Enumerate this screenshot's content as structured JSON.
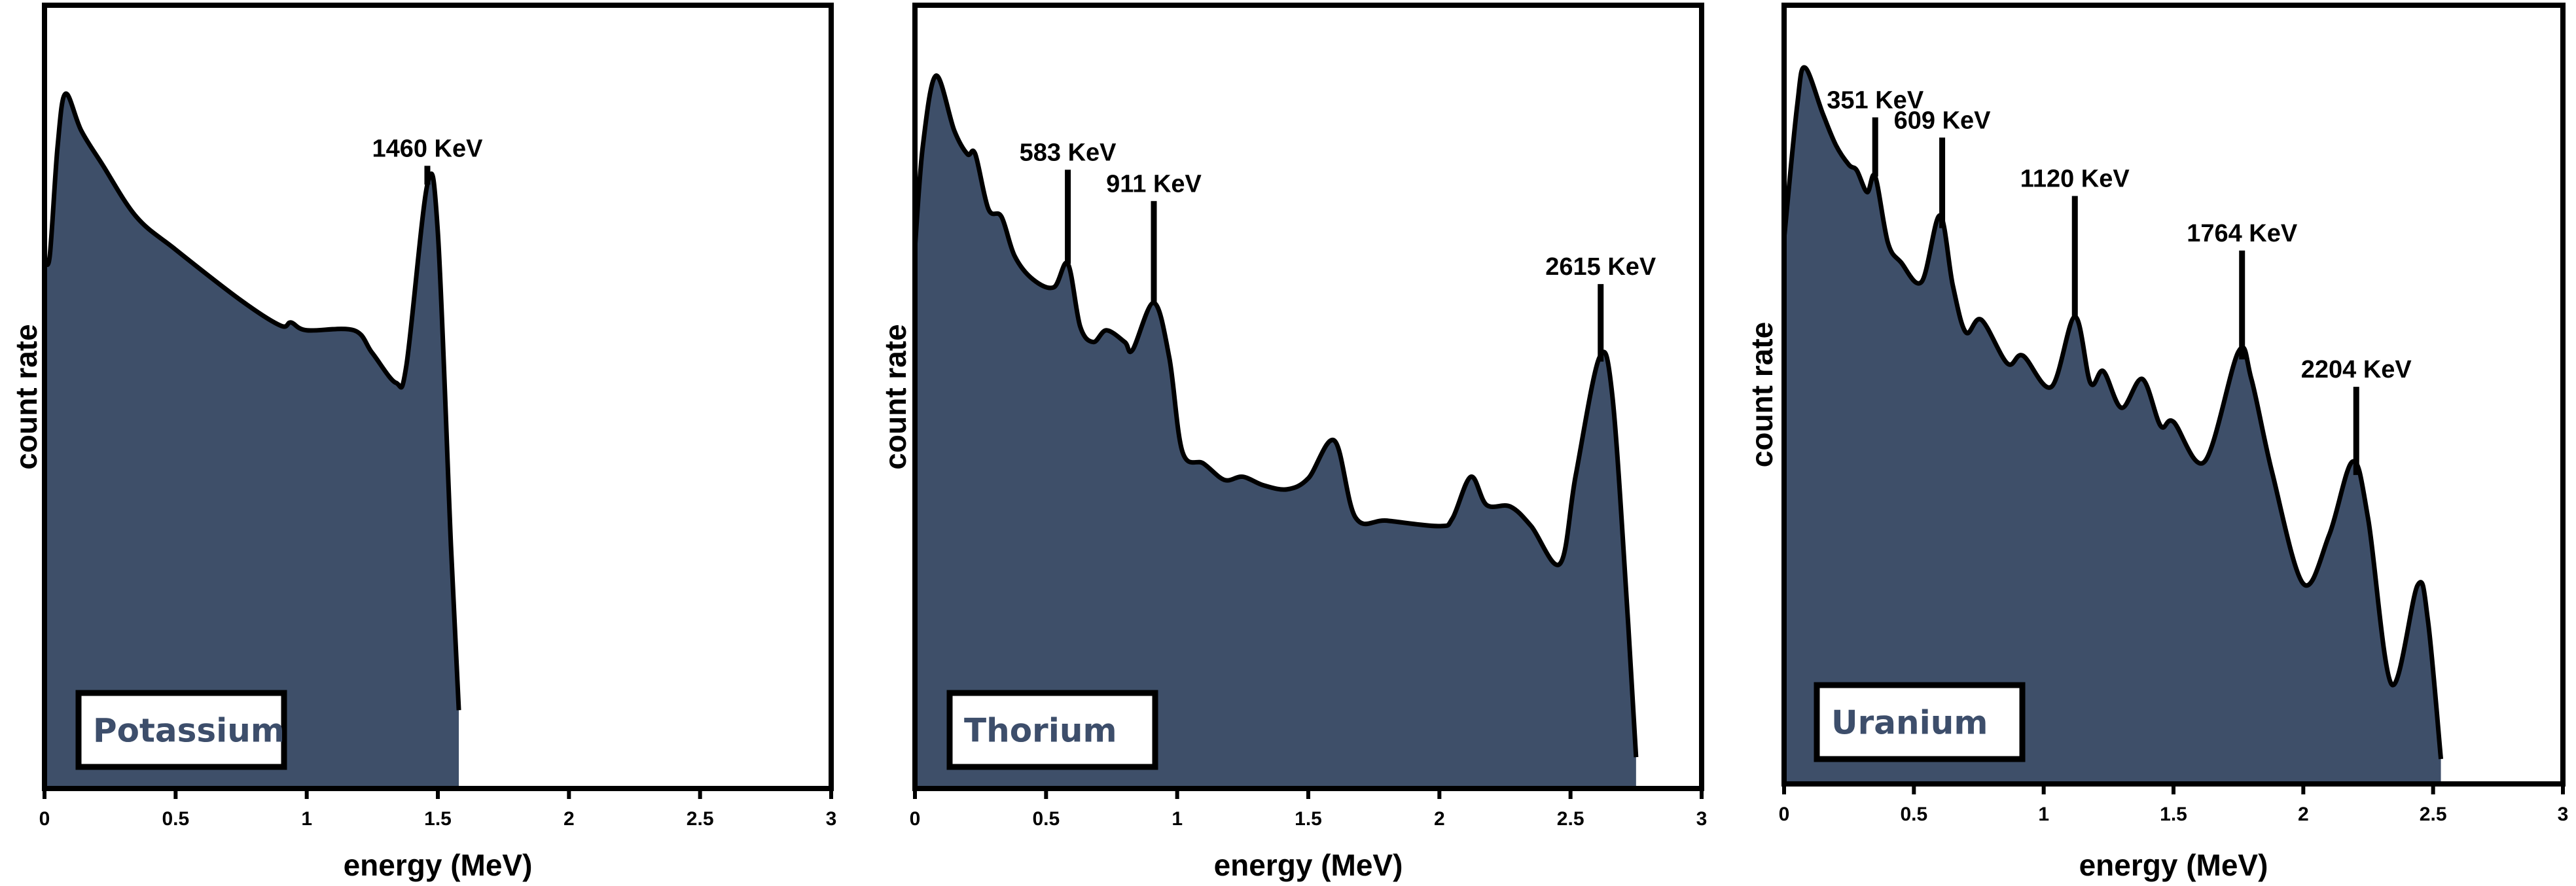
{
  "colors": {
    "fill": "#3e4f69",
    "label_text": "#3d4e6b",
    "line": "#000000"
  },
  "chart_data": [
    {
      "type": "area",
      "element_label": "Potassium",
      "xlabel": "energy (MeV)",
      "ylabel": "count rate",
      "xlim": [
        0,
        3
      ],
      "ylim": [
        0,
        100
      ],
      "y_ticks_shown": false,
      "grid": false,
      "xticks": [
        "0",
        "0.5",
        "1",
        "1.5",
        "2",
        "2.5",
        "3"
      ],
      "x": [
        0,
        0.02,
        0.05,
        0.08,
        0.14,
        0.22,
        0.35,
        0.5,
        0.75,
        0.9,
        0.94,
        1.0,
        1.18,
        1.25,
        1.34,
        1.38,
        1.46,
        1.5,
        1.55,
        1.58
      ],
      "y": [
        67.7,
        68,
        82,
        88.7,
        84,
        79.7,
        73,
        68.8,
        62.3,
        59.1,
        59.5,
        58.5,
        58.5,
        55.6,
        51.8,
        54,
        77.1,
        71,
        31,
        10
      ],
      "peaks": [
        {
          "label": "1460 KeV",
          "energy": 1.46,
          "marker_top": 79.5
        }
      ]
    },
    {
      "type": "area",
      "element_label": "Thorium",
      "xlabel": "energy (MeV)",
      "ylabel": "count rate",
      "xlim": [
        0,
        3
      ],
      "ylim": [
        0,
        100
      ],
      "y_ticks_shown": false,
      "grid": false,
      "xticks": [
        "0",
        "0.5",
        "1",
        "1.5",
        "2",
        "2.5",
        "3"
      ],
      "x": [
        0,
        0.03,
        0.08,
        0.15,
        0.2,
        0.23,
        0.28,
        0.33,
        0.38,
        0.45,
        0.53,
        0.583,
        0.63,
        0.68,
        0.73,
        0.8,
        0.83,
        0.911,
        0.97,
        1.02,
        1.1,
        1.18,
        1.25,
        1.33,
        1.42,
        1.5,
        1.6,
        1.68,
        1.8,
        2.0,
        2.05,
        2.12,
        2.18,
        2.27,
        2.35,
        2.46,
        2.52,
        2.61,
        2.66,
        2.72,
        2.75
      ],
      "y": [
        69,
        82,
        91,
        84,
        81,
        81,
        74,
        73,
        68,
        65,
        64,
        67,
        59,
        57,
        58.5,
        57,
        56,
        62,
        55,
        43,
        41.5,
        39.4,
        39.8,
        38.7,
        38.2,
        39.6,
        44.4,
        34.6,
        34.2,
        33.5,
        34.5,
        39.8,
        36.2,
        36,
        33.5,
        28.7,
        40,
        55,
        50,
        21,
        4
      ],
      "peaks": [
        {
          "label": "583 KeV",
          "energy": 0.583,
          "marker_top": 79
        },
        {
          "label": "911 KeV",
          "energy": 0.911,
          "marker_top": 75
        },
        {
          "label": "2615 KeV",
          "energy": 2.615,
          "marker_top": 64.4
        }
      ]
    },
    {
      "type": "area",
      "element_label": "Uranium",
      "xlabel": "energy (MeV)",
      "ylabel": "count rate",
      "xlim": [
        0,
        3
      ],
      "ylim": [
        0,
        100
      ],
      "y_ticks_shown": false,
      "grid": false,
      "xticks": [
        "0",
        "0.5",
        "1",
        "1.5",
        "2",
        "2.5",
        "3"
      ],
      "x": [
        0,
        0.05,
        0.08,
        0.15,
        0.2,
        0.25,
        0.28,
        0.32,
        0.351,
        0.4,
        0.45,
        0.53,
        0.6,
        0.65,
        0.7,
        0.76,
        0.86,
        0.92,
        1.03,
        1.12,
        1.18,
        1.23,
        1.3,
        1.38,
        1.45,
        1.5,
        1.62,
        1.75,
        1.8,
        1.88,
        2.0,
        2.1,
        2.19,
        2.25,
        2.34,
        2.44,
        2.48,
        2.53
      ],
      "y": [
        70,
        87,
        92,
        86,
        82,
        79.5,
        78.8,
        76,
        78,
        69.5,
        67,
        64.5,
        73,
        64,
        58,
        59.6,
        54,
        55,
        51,
        60,
        51.5,
        53,
        48.3,
        52,
        46,
        46.5,
        41.4,
        55.5,
        52,
        40,
        25.7,
        32,
        41.4,
        34,
        12.8,
        25.5,
        21,
        3.2
      ],
      "peaks": [
        {
          "label": "351 KeV",
          "energy": 0.351,
          "marker_top": 85.6
        },
        {
          "label": "609 KeV",
          "energy": 0.609,
          "marker_top": 83
        },
        {
          "label": "1120 KeV",
          "energy": 1.12,
          "marker_top": 75.5
        },
        {
          "label": "1764 KeV",
          "energy": 1.764,
          "marker_top": 68.5
        },
        {
          "label": "2204 KeV",
          "energy": 2.204,
          "marker_top": 51
        }
      ]
    }
  ]
}
